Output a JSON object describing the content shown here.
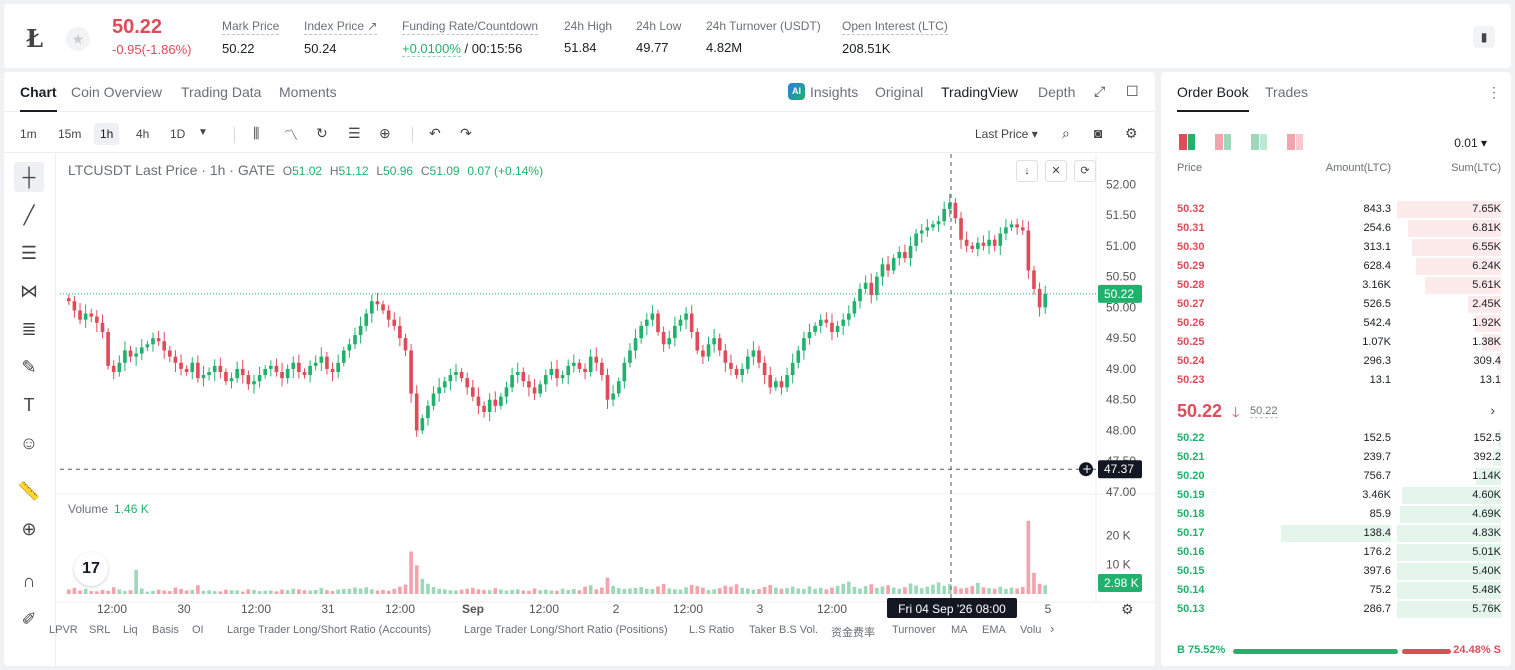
{
  "header": {
    "logo_glyph": "Ł",
    "price": "50.22",
    "change": "-0.95(-1.86%)",
    "stats": [
      {
        "label": "Mark Price",
        "value": "50.22"
      },
      {
        "label": "Index Price ↗",
        "value": "50.24"
      },
      {
        "label": "Funding Rate/Countdown",
        "value_rate": "+0.0100%",
        "value_time": "/ 00:15:56"
      },
      {
        "label": "24h High",
        "value": "51.84"
      },
      {
        "label": "24h Low",
        "value": "49.77"
      },
      {
        "label": "24h Turnover (USDT)",
        "value": "4.82M"
      },
      {
        "label": "Open Interest (LTC)",
        "value": "208.51K"
      }
    ]
  },
  "chart_tabs": {
    "left": [
      "Chart",
      "Coin Overview",
      "Trading Data",
      "Moments"
    ],
    "right": [
      "Insights",
      "Original",
      "TradingView",
      "Depth"
    ],
    "ai_badge": "AI"
  },
  "toolbar": {
    "timeframes": [
      "1m",
      "15m",
      "1h",
      "4h",
      "1D"
    ],
    "price_type": "Last Price ▾"
  },
  "legend": {
    "title": "LTCUSDT Last Price · 1h · GATE",
    "o_k": "O",
    "o": "51.02",
    "h_k": "H",
    "h": "51.12",
    "l_k": "L",
    "l": "50.96",
    "c_k": "C",
    "c": "51.09",
    "chg": "0.07 (+0.14%)"
  },
  "volume": {
    "label": "Volume",
    "value": "1.46 K"
  },
  "indicators": [
    "LPVR",
    "SRL",
    "Liq",
    "Basis",
    "OI",
    "Large Trader Long/Short Ratio (Accounts)",
    "Large Trader Long/Short Ratio (Positions)",
    "L.S Ratio",
    "Taker B.S Vol.",
    "资金费率",
    "Turnover",
    "MA",
    "EMA",
    "Volu"
  ],
  "chart_data": {
    "type": "candlestick",
    "symbol": "LTCUSDT",
    "interval": "1h",
    "y_ticks": [
      "52.00",
      "51.50",
      "51.00",
      "50.50",
      "50.00",
      "49.50",
      "49.00",
      "48.50",
      "48.00",
      "47.50",
      "47.00"
    ],
    "ylim": [
      47.0,
      52.2
    ],
    "vol_ticks": [
      "20 K",
      "10 K"
    ],
    "x_ticks": [
      "12:00",
      "30",
      "12:00",
      "31",
      "12:00",
      "Sep",
      "12:00",
      "2",
      "12:00",
      "3",
      "12:00",
      "4",
      "5"
    ],
    "last_price_label": "50.22",
    "crosshair_label": "47.37",
    "crosshair_time": "Fri 04 Sep '26   08:00",
    "last_volume_label": "2.98 K",
    "closes": [
      50.1,
      49.95,
      49.8,
      49.9,
      49.85,
      49.75,
      49.6,
      49.05,
      48.95,
      49.1,
      49.3,
      49.2,
      49.25,
      49.35,
      49.4,
      49.5,
      49.45,
      49.3,
      49.2,
      49.1,
      49.0,
      48.95,
      49.1,
      48.85,
      48.9,
      48.95,
      49.05,
      48.95,
      48.8,
      48.85,
      49.0,
      48.9,
      48.75,
      48.8,
      48.9,
      49.0,
      49.05,
      48.95,
      48.85,
      49.0,
      49.1,
      48.95,
      48.9,
      49.05,
      49.1,
      49.2,
      49.0,
      48.95,
      49.1,
      49.3,
      49.4,
      49.55,
      49.7,
      49.9,
      50.1,
      50.05,
      49.95,
      49.8,
      49.7,
      49.5,
      49.3,
      48.6,
      48.0,
      48.2,
      48.4,
      48.6,
      48.7,
      48.8,
      48.9,
      48.95,
      48.85,
      48.7,
      48.55,
      48.4,
      48.3,
      48.5,
      48.4,
      48.55,
      48.7,
      48.9,
      48.95,
      48.8,
      48.7,
      48.6,
      48.75,
      48.9,
      49.0,
      48.85,
      48.9,
      49.05,
      49.1,
      49.0,
      48.95,
      49.2,
      49.1,
      48.9,
      48.5,
      48.6,
      48.8,
      49.1,
      49.3,
      49.5,
      49.7,
      49.8,
      49.9,
      49.6,
      49.4,
      49.5,
      49.7,
      49.8,
      49.9,
      49.6,
      49.3,
      49.2,
      49.4,
      49.5,
      49.3,
      49.1,
      49.0,
      48.9,
      49.0,
      49.2,
      49.3,
      49.1,
      48.9,
      48.7,
      48.8,
      48.7,
      48.9,
      49.1,
      49.3,
      49.5,
      49.6,
      49.7,
      49.8,
      49.75,
      49.6,
      49.7,
      49.8,
      49.9,
      50.1,
      50.3,
      50.4,
      50.2,
      50.5,
      50.7,
      50.6,
      50.8,
      50.9,
      50.8,
      51.0,
      51.2,
      51.25,
      51.3,
      51.35,
      51.4,
      51.6,
      51.7,
      51.45,
      51.1,
      51.0,
      50.95,
      51.05,
      51.0,
      51.1,
      51.0,
      51.2,
      51.3,
      51.35,
      51.3,
      51.25,
      50.6,
      50.3,
      50.0,
      50.22
    ],
    "volumes": [
      1.5,
      2.1,
      1.2,
      1.8,
      1.0,
      0.9,
      1.4,
      1.1,
      2.3,
      1.6,
      1.0,
      1.3,
      8.2,
      1.9,
      0.8,
      1.1,
      1.5,
      1.2,
      1.0,
      2.2,
      1.7,
      1.2,
      1.4,
      3.0,
      1.1,
      1.3,
      1.0,
      0.9,
      1.5,
      1.3,
      1.2,
      0.8,
      1.6,
      1.4,
      1.0,
      1.1,
      1.2,
      0.9,
      1.5,
      1.3,
      1.8,
      1.6,
      1.3,
      1.2,
      1.4,
      2.1,
      1.3,
      1.0,
      1.5,
      1.7,
      1.8,
      2.2,
      1.9,
      2.3,
      1.6,
      1.2,
      1.4,
      1.1,
      1.8,
      2.5,
      3.2,
      14.5,
      9.8,
      5.2,
      3.5,
      2.4,
      1.8,
      1.6,
      1.3,
      1.2,
      1.5,
      1.8,
      2.1,
      1.6,
      1.4,
      1.3,
      2.0,
      1.5,
      1.2,
      1.4,
      1.6,
      1.2,
      1.1,
      1.9,
      1.3,
      1.5,
      1.2,
      1.1,
      1.8,
      1.4,
      1.7,
      1.3,
      2.5,
      3.0,
      1.6,
      2.2,
      5.6,
      2.8,
      2.0,
      1.7,
      1.9,
      2.1,
      2.4,
      1.8,
      1.7,
      2.6,
      3.4,
      1.9,
      1.6,
      1.5,
      2.3,
      3.1,
      2.7,
      2.2,
      1.4,
      1.6,
      2.0,
      2.8,
      2.5,
      3.3,
      2.1,
      1.9,
      1.5,
      1.7,
      2.4,
      3.1,
      2.2,
      1.8,
      2.0,
      2.5,
      1.9,
      1.7,
      2.6,
      1.8,
      2.1,
      1.6,
      2.2,
      2.8,
      3.5,
      4.2,
      2.4,
      1.9,
      2.7,
      3.3,
      2.1,
      2.6,
      3.0,
      2.2,
      1.8,
      2.3,
      3.6,
      2.9,
      2.0,
      2.5,
      3.2,
      4.0,
      2.8,
      3.4,
      2.6,
      1.9,
      2.1,
      2.7,
      3.8,
      2.3,
      2.0,
      1.8,
      2.5,
      1.7,
      2.2,
      1.9,
      2.4,
      25.0,
      7.2,
      3.5,
      2.98
    ]
  },
  "orderbook": {
    "tabs": [
      "Order Book",
      "Trades"
    ],
    "precision": "0.01 ▾",
    "headers": [
      "Price",
      "Amount(LTC)",
      "Sum(LTC)"
    ],
    "asks": [
      {
        "price": "50.32",
        "amount": "843.3",
        "sum": "7.65K",
        "depth": 1.0
      },
      {
        "price": "50.31",
        "amount": "254.6",
        "sum": "6.81K",
        "depth": 0.89
      },
      {
        "price": "50.30",
        "amount": "313.1",
        "sum": "6.55K",
        "depth": 0.86
      },
      {
        "price": "50.29",
        "amount": "628.4",
        "sum": "6.24K",
        "depth": 0.82
      },
      {
        "price": "50.28",
        "amount": "3.16K",
        "sum": "5.61K",
        "depth": 0.73
      },
      {
        "price": "50.27",
        "amount": "526.5",
        "sum": "2.45K",
        "depth": 0.32
      },
      {
        "price": "50.26",
        "amount": "542.4",
        "sum": "1.92K",
        "depth": 0.25
      },
      {
        "price": "50.25",
        "amount": "1.07K",
        "sum": "1.38K",
        "depth": 0.18
      },
      {
        "price": "50.24",
        "amount": "296.3",
        "sum": "309.4",
        "depth": 0.04
      },
      {
        "price": "50.23",
        "amount": "13.1",
        "sum": "13.1",
        "depth": 0.01
      }
    ],
    "mid": {
      "price": "50.22",
      "arrow": "🡓",
      "mark": "50.22",
      "chevron": "›"
    },
    "bids": [
      {
        "price": "50.22",
        "amount": "152.5",
        "sum": "152.5",
        "depth": 0.03
      },
      {
        "price": "50.21",
        "amount": "239.7",
        "sum": "392.2",
        "depth": 0.08
      },
      {
        "price": "50.20",
        "amount": "756.7",
        "sum": "1.14K",
        "depth": 0.24
      },
      {
        "price": "50.19",
        "amount": "3.46K",
        "sum": "4.60K",
        "depth": 0.95
      },
      {
        "price": "50.18",
        "amount": "85.9",
        "sum": "4.69K",
        "depth": 0.97
      },
      {
        "price": "50.17",
        "amount": "138.4",
        "sum": "4.83K",
        "depth": 1.0,
        "hl": true
      },
      {
        "price": "50.16",
        "amount": "176.2",
        "sum": "5.01K",
        "depth": 1.0
      },
      {
        "price": "50.15",
        "amount": "397.6",
        "sum": "5.40K",
        "depth": 1.0
      },
      {
        "price": "50.14",
        "amount": "75.2",
        "sum": "5.48K",
        "depth": 1.0
      },
      {
        "price": "50.13",
        "amount": "286.7",
        "sum": "5.76K",
        "depth": 1.0
      }
    ],
    "buy_ratio_label": "B 75.52%",
    "sell_ratio_label": "24.48% S",
    "buy_ratio": 0.7552
  },
  "colors": {
    "up": "#20b26c",
    "down": "#e04b5a",
    "up_vol": "#9dd8bb",
    "down_vol": "#f2a3ac"
  }
}
